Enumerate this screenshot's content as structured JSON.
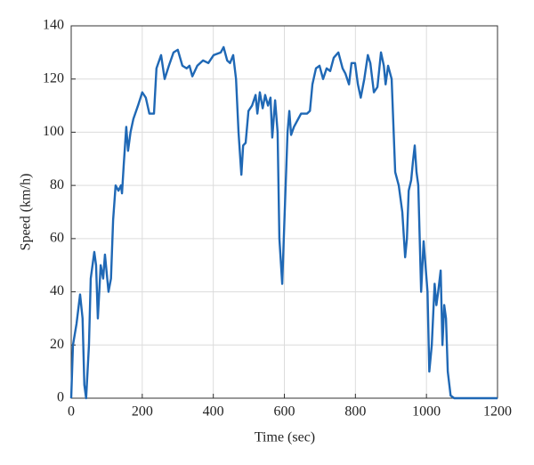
{
  "chart_data": {
    "type": "line",
    "xlabel": "Time (sec)",
    "ylabel": "Speed (km/h)",
    "x": [
      0,
      5,
      15,
      25,
      32,
      37,
      42,
      50,
      55,
      65,
      70,
      75,
      83,
      90,
      95,
      105,
      112,
      118,
      125,
      133,
      140,
      143,
      148,
      155,
      160,
      167,
      175,
      188,
      200,
      210,
      220,
      233,
      240,
      253,
      263,
      275,
      288,
      300,
      313,
      325,
      333,
      341,
      355,
      371,
      386,
      401,
      421,
      429,
      439,
      447,
      456,
      464,
      471,
      479,
      484,
      491,
      499,
      509,
      519,
      524,
      531,
      539,
      546,
      554,
      561,
      566,
      574,
      581,
      586,
      594,
      601,
      609,
      614,
      619,
      627,
      639,
      647,
      664,
      672,
      679,
      689,
      699,
      709,
      719,
      729,
      739,
      752,
      764,
      772,
      782,
      789,
      799,
      807,
      815,
      825,
      835,
      842,
      852,
      862,
      872,
      880,
      885,
      892,
      902,
      912,
      922,
      932,
      940,
      945,
      950,
      957,
      962,
      967,
      972,
      977,
      985,
      992,
      1003,
      1008,
      1015,
      1023,
      1028,
      1033,
      1040,
      1045,
      1050,
      1055,
      1060,
      1068,
      1078,
      1200
    ],
    "series": [
      {
        "color": "#1f68b5",
        "values": [
          0,
          20,
          28,
          39,
          30,
          5,
          0,
          20,
          45,
          55,
          50,
          30,
          50,
          45,
          54,
          40,
          45,
          67,
          80,
          78,
          80,
          77,
          88,
          102,
          93,
          100,
          105,
          110,
          115,
          113,
          107,
          107,
          124,
          129,
          120,
          125,
          130,
          131,
          125,
          124,
          125,
          121,
          125,
          127,
          126,
          129,
          130,
          132,
          127,
          126,
          129,
          120,
          100,
          84,
          95,
          96,
          108,
          110,
          114,
          107,
          115,
          109,
          114,
          110,
          113,
          98,
          112,
          100,
          60,
          43,
          70,
          100,
          108,
          99,
          102,
          105,
          107,
          107,
          108,
          118,
          124,
          125,
          120,
          124,
          123,
          128,
          130,
          124,
          122,
          118,
          126,
          126,
          118,
          113,
          120,
          129,
          126,
          115,
          117,
          130,
          125,
          118,
          125,
          120,
          85,
          80,
          70,
          53,
          60,
          78,
          82,
          89,
          95,
          85,
          80,
          40,
          59,
          40,
          10,
          20,
          43,
          35,
          40,
          48,
          20,
          35,
          30,
          10,
          1,
          0,
          0
        ]
      }
    ],
    "xlim": [
      0,
      1200
    ],
    "xticks": [
      0,
      200,
      400,
      600,
      800,
      1000,
      1200
    ],
    "ylim": [
      0,
      140
    ],
    "yticks": [
      0,
      20,
      40,
      60,
      80,
      100,
      120,
      140
    ],
    "grid": true
  }
}
